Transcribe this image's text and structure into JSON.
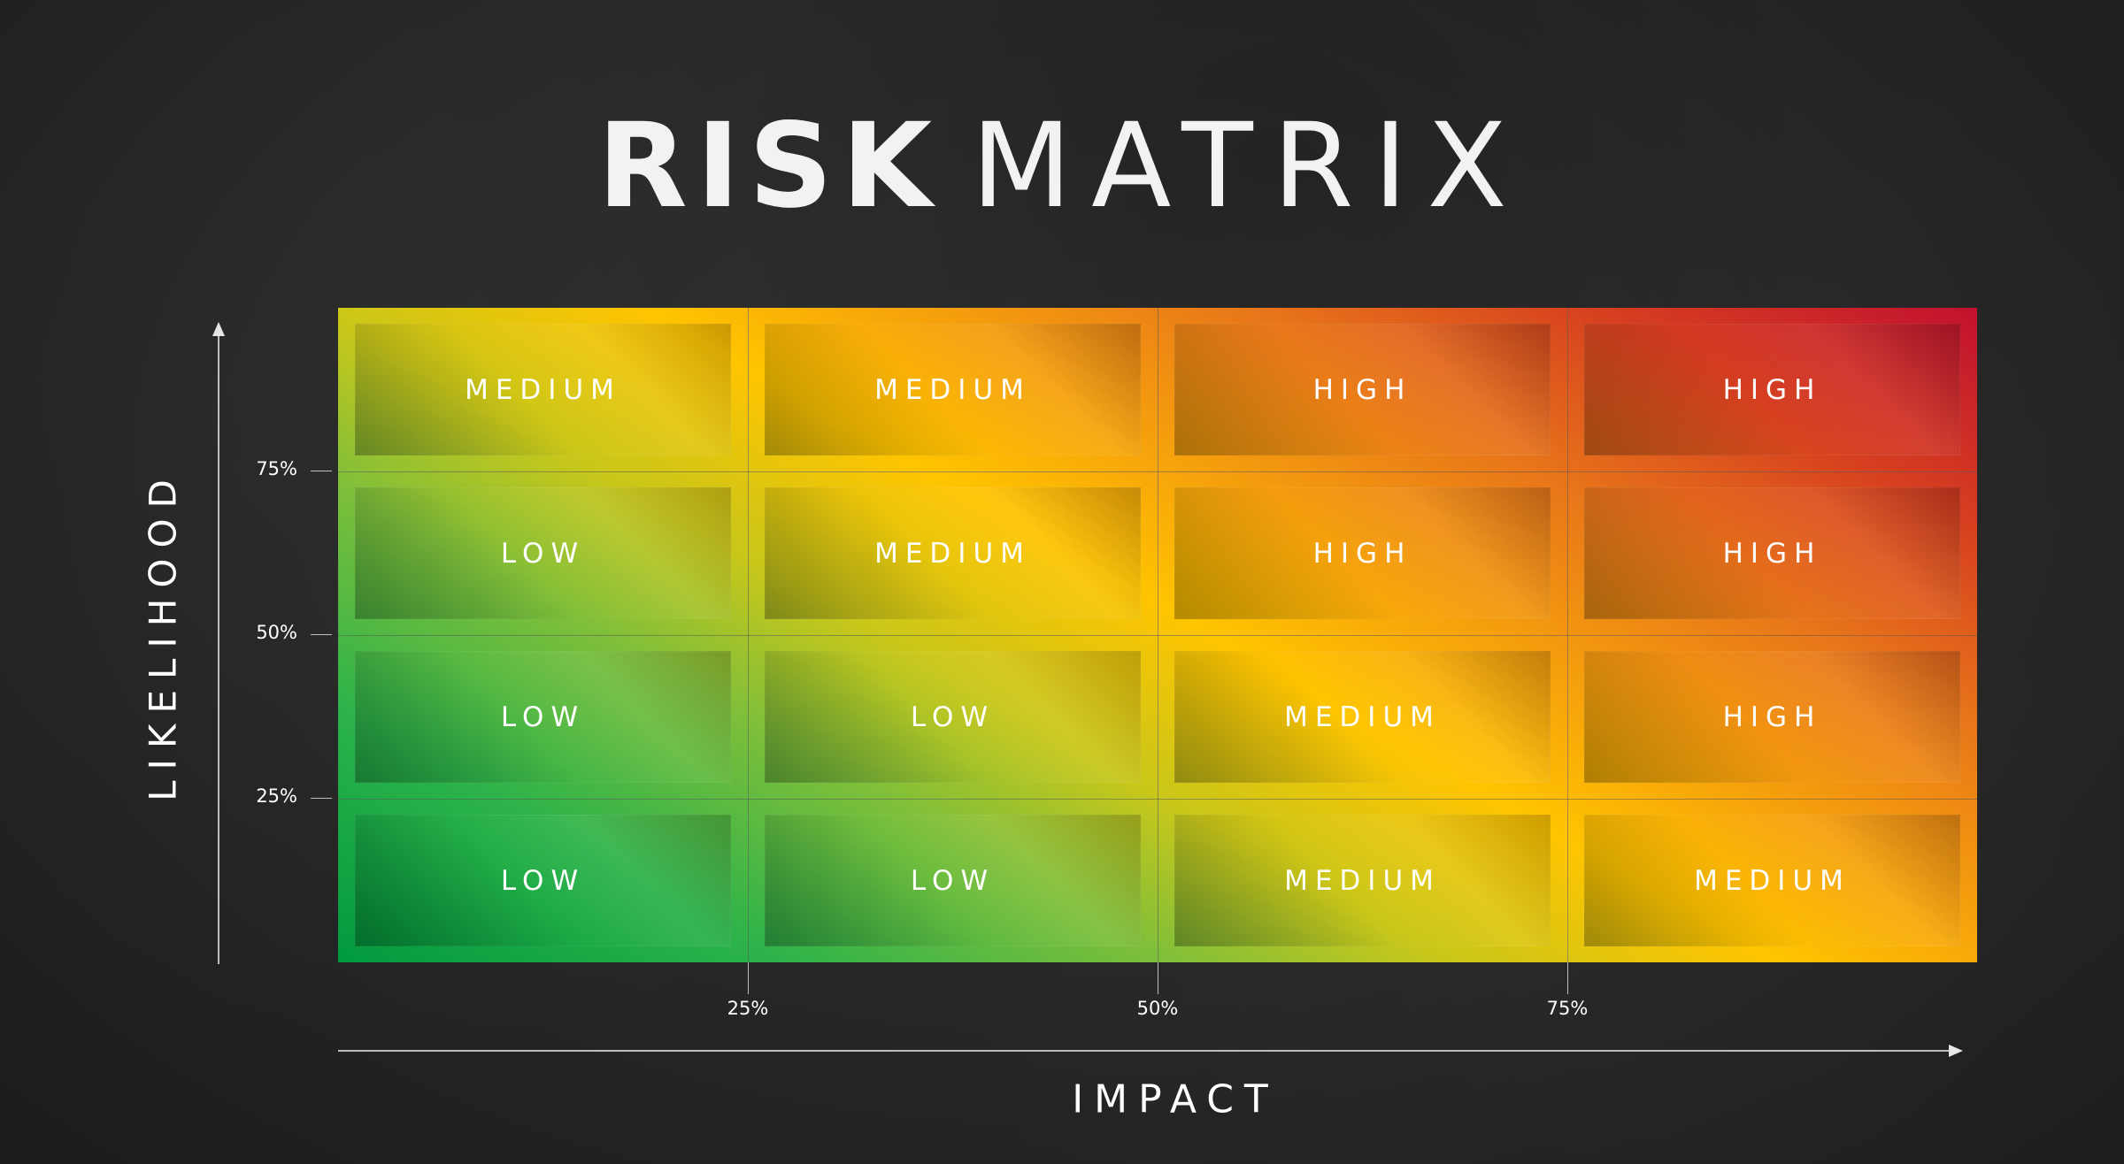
{
  "title": {
    "bold": "RISK",
    "light": "MATRIX"
  },
  "axes": {
    "y_label": "LIKELIHOOD",
    "x_label": "IMPACT",
    "y_ticks": [
      "75%",
      "50%",
      "25%"
    ],
    "x_ticks": [
      "25%",
      "50%",
      "75%"
    ]
  },
  "matrix": {
    "rows": [
      [
        "MEDIUM",
        "MEDIUM",
        "HIGH",
        "HIGH"
      ],
      [
        "LOW",
        "MEDIUM",
        "HIGH",
        "HIGH"
      ],
      [
        "LOW",
        "LOW",
        "MEDIUM",
        "HIGH"
      ],
      [
        "LOW",
        "LOW",
        "MEDIUM",
        "MEDIUM"
      ]
    ]
  },
  "colors": {
    "low": "#1fa845",
    "medium": "#ffc400",
    "high": "#c2112f",
    "background": "#262626"
  }
}
